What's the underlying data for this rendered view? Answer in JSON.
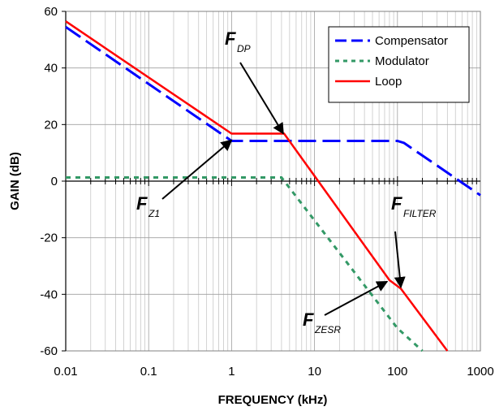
{
  "chart_data": {
    "type": "line",
    "xlabel": "FREQUENCY (kHz)",
    "ylabel": "GAIN (dB)",
    "xscale": "log",
    "xlim": [
      0.01,
      1000
    ],
    "ylim": [
      -60,
      60
    ],
    "x_ticks": [
      "0.01",
      "0.1",
      "1",
      "10",
      "100",
      "1000"
    ],
    "y_ticks": [
      "60",
      "40",
      "20",
      "0",
      "-20",
      "-40",
      "-60"
    ],
    "grid": true,
    "legend_position": "top-right",
    "series": [
      {
        "name": "Compensator",
        "color": "#0000ff",
        "style": "dashed",
        "points": [
          [
            0.01,
            54.5
          ],
          [
            1,
            14.2
          ],
          [
            100,
            14.2
          ],
          [
            120,
            13.5
          ],
          [
            1000,
            -5
          ]
        ]
      },
      {
        "name": "Modulator",
        "color": "#339966",
        "style": "dotted",
        "points": [
          [
            0.01,
            1.3
          ],
          [
            4,
            1.3
          ],
          [
            100,
            -52
          ],
          [
            200,
            -60
          ]
        ]
      },
      {
        "name": "Loop",
        "color": "#ff0000",
        "style": "solid",
        "points": [
          [
            0.01,
            56.5
          ],
          [
            1,
            16.8
          ],
          [
            4.3,
            16.8
          ],
          [
            80,
            -35
          ],
          [
            110,
            -38
          ],
          [
            400,
            -60
          ]
        ]
      }
    ],
    "annotations": [
      {
        "main": "F",
        "sub": "DP",
        "x": 4.2,
        "y": 16.8
      },
      {
        "main": "F",
        "sub": "Z1",
        "x": 1,
        "y": 14.5
      },
      {
        "main": "F",
        "sub": "FILTER",
        "x": 110,
        "y": -37.5
      },
      {
        "main": "F",
        "sub": "ZESR",
        "x": 75,
        "y": -35.5
      }
    ]
  }
}
